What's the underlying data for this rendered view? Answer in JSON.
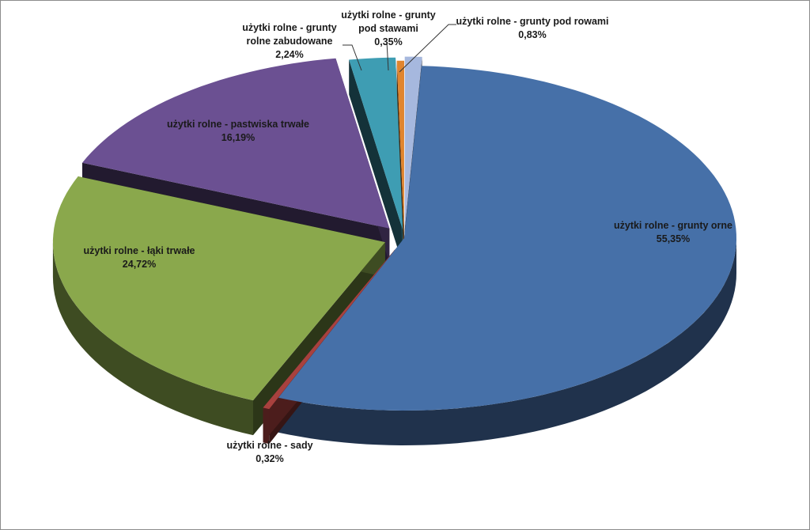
{
  "chart_data": {
    "type": "pie",
    "title": "",
    "three_d": true,
    "exploded": true,
    "data_labels": "category name and percentage",
    "legend": "none",
    "slices": [
      {
        "name": "użytki rolne - grunty orne",
        "label_lines": [
          "użytki rolne - grunty orne"
        ],
        "value": 55.35,
        "value_label": "55,35%",
        "color": "#4670a8"
      },
      {
        "name": "użytki rolne - sady",
        "label_lines": [
          "użytki rolne - sady"
        ],
        "value": 0.32,
        "value_label": "0,32%",
        "color": "#a8413e"
      },
      {
        "name": "użytki rolne - łąki trwałe",
        "label_lines": [
          "użytki rolne - łąki trwałe"
        ],
        "value": 24.72,
        "value_label": "24,72%",
        "color": "#8aa84c"
      },
      {
        "name": "użytki rolne - pastwiska trwałe",
        "label_lines": [
          "użytki rolne - pastwiska trwałe"
        ],
        "value": 16.19,
        "value_label": "16,19%",
        "color": "#6b5092"
      },
      {
        "name": "użytki rolne - grunty rolne zabudowane",
        "label_lines": [
          "użytki rolne - grunty",
          "rolne zabudowane"
        ],
        "value": 2.24,
        "value_label": "2,24%",
        "color": "#3e9db3"
      },
      {
        "name": "użytki rolne - grunty pod stawami",
        "label_lines": [
          "użytki rolne - grunty",
          "pod stawami"
        ],
        "value": 0.35,
        "value_label": "0,35%",
        "color": "#e0852f"
      },
      {
        "name": "użytki rolne - grunty pod rowami",
        "label_lines": [
          "użytki rolne - grunty pod rowami"
        ],
        "value": 0.83,
        "value_label": "0,83%",
        "color": "#a6b8de"
      }
    ]
  }
}
